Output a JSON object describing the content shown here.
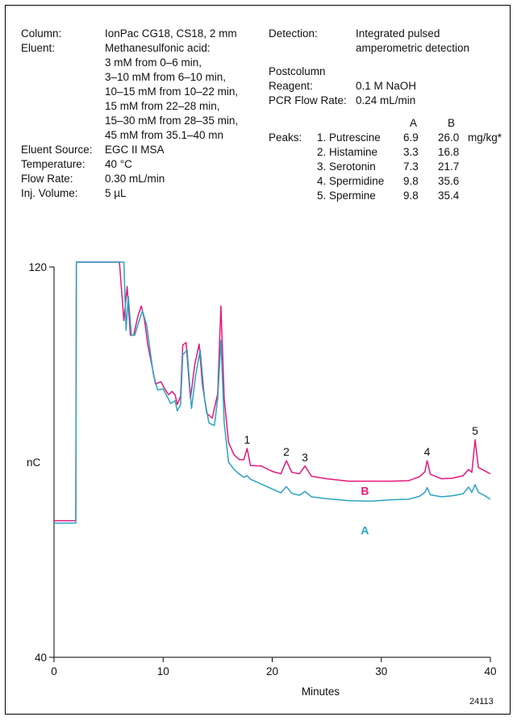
{
  "conditions_left": [
    {
      "label": "Column:",
      "value": [
        "IonPac CG18, CS18, 2 mm"
      ]
    },
    {
      "label": "Eluent:",
      "value": [
        "Methanesulfonic acid:",
        "3 mM from 0–6 min,",
        "3–10 mM from 6–10 min,",
        "10–15 mM from 10–22 min,",
        "15 mM from 22–28 min,",
        "15–30 mM from 28–35 min,",
        "45 mM from 35.1–40 mn"
      ]
    },
    {
      "label": "Eluent Source:",
      "value": [
        "EGC II MSA"
      ]
    },
    {
      "label": "Temperature:",
      "value": [
        "40 °C"
      ]
    },
    {
      "label": "Flow Rate:",
      "value": [
        "0.30 mL/min"
      ]
    },
    {
      "label": "Inj. Volume:",
      "value": [
        "5 µL"
      ]
    }
  ],
  "conditions_right": {
    "detection_label": "Detection:",
    "detection_value": [
      "Integrated pulsed",
      "amperometric detection"
    ],
    "postcolumn_label": "Postcolumn",
    "reagent_label": "Reagent:",
    "reagent_value": "0.1 M NaOH",
    "pcr_label": "PCR Flow Rate:",
    "pcr_value": "0.24 mL/min"
  },
  "peaks_table": {
    "label": "Peaks:",
    "col_a": "A",
    "col_b": "B",
    "unit": "mg/kg*",
    "rows": [
      {
        "name": "1. Putrescine",
        "a": "6.9",
        "b": "26.0"
      },
      {
        "name": "2. Histamine",
        "a": "3.3",
        "b": "16.8"
      },
      {
        "name": "3. Serotonin",
        "a": "7.3",
        "b": "21.7"
      },
      {
        "name": "4. Spermidine",
        "a": "9.8",
        "b": "35.6"
      },
      {
        "name": "5. Spermine",
        "a": "9.8",
        "b": "35.4"
      }
    ]
  },
  "figure_id": "24113",
  "colors": {
    "A": "#2ba3c4",
    "B": "#e4187a"
  },
  "chart_data": {
    "type": "line",
    "xlabel": "Minutes",
    "ylabel": "nC",
    "xlim": [
      0,
      40
    ],
    "ylim": [
      40,
      120
    ],
    "x_ticks": [
      0,
      10,
      20,
      30,
      40
    ],
    "y_ticks": [
      40,
      120
    ],
    "peak_labels": [
      {
        "label": "1",
        "x": 17.7,
        "y": 83.8
      },
      {
        "label": "2",
        "x": 21.3,
        "y": 81.3
      },
      {
        "label": "3",
        "x": 23.0,
        "y": 80.2
      },
      {
        "label": "4",
        "x": 34.2,
        "y": 81.3
      },
      {
        "label": "5",
        "x": 38.6,
        "y": 85.6
      }
    ],
    "series": [
      {
        "name": "B",
        "label_pos": {
          "x": 28.5,
          "y": 73.3
        },
        "points": [
          [
            -5.0,
            68.0
          ],
          [
            2.0,
            68.0
          ],
          [
            2.05,
            121.0
          ],
          [
            6.0,
            121.0
          ],
          [
            6.4,
            109.0
          ],
          [
            6.7,
            116.0
          ],
          [
            7.0,
            106.0
          ],
          [
            7.3,
            106.0
          ],
          [
            7.7,
            110.0
          ],
          [
            8.0,
            112.0
          ],
          [
            8.3,
            109.0
          ],
          [
            8.6,
            104.0
          ],
          [
            9.0,
            99.5
          ],
          [
            9.3,
            96.0
          ],
          [
            9.8,
            96.5
          ],
          [
            10.1,
            95.2
          ],
          [
            10.5,
            93.8
          ],
          [
            10.8,
            94.5
          ],
          [
            11.1,
            93.8
          ],
          [
            11.3,
            91.8
          ],
          [
            11.6,
            93.5
          ],
          [
            11.8,
            104.0
          ],
          [
            12.1,
            104.5
          ],
          [
            12.5,
            93.0
          ],
          [
            12.9,
            100.0
          ],
          [
            13.3,
            104.2
          ],
          [
            13.6,
            96.0
          ],
          [
            14.0,
            90.0
          ],
          [
            14.5,
            89.0
          ],
          [
            15.0,
            94.0
          ],
          [
            15.3,
            112.0
          ],
          [
            15.6,
            93.0
          ],
          [
            16.0,
            84.0
          ],
          [
            16.5,
            81.5
          ],
          [
            17.0,
            80.5
          ],
          [
            17.4,
            80.5
          ],
          [
            17.7,
            82.8
          ],
          [
            18.0,
            79.3
          ],
          [
            19.0,
            79.2
          ],
          [
            20.0,
            78.1
          ],
          [
            20.8,
            77.6
          ],
          [
            21.3,
            80.3
          ],
          [
            21.8,
            77.9
          ],
          [
            22.5,
            77.6
          ],
          [
            23.0,
            79.2
          ],
          [
            23.6,
            77.1
          ],
          [
            25.0,
            76.6
          ],
          [
            27.0,
            76.1
          ],
          [
            29.0,
            76.1
          ],
          [
            31.0,
            76.1
          ],
          [
            32.5,
            76.2
          ],
          [
            33.5,
            77.0
          ],
          [
            34.0,
            78.0
          ],
          [
            34.2,
            80.3
          ],
          [
            34.5,
            77.5
          ],
          [
            35.5,
            76.6
          ],
          [
            36.5,
            76.7
          ],
          [
            37.5,
            77.2
          ],
          [
            38.0,
            78.5
          ],
          [
            38.3,
            77.9
          ],
          [
            38.6,
            84.6
          ],
          [
            38.9,
            78.9
          ],
          [
            40.0,
            77.6
          ]
        ]
      },
      {
        "name": "A",
        "label_pos": {
          "x": 28.5,
          "y": 65.2
        },
        "points": [
          [
            -5.0,
            67.5
          ],
          [
            2.0,
            67.5
          ],
          [
            2.05,
            121.0
          ],
          [
            6.4,
            121.0
          ],
          [
            6.6,
            107.0
          ],
          [
            6.8,
            114.0
          ],
          [
            7.1,
            106.0
          ],
          [
            7.4,
            106.0
          ],
          [
            7.8,
            109.0
          ],
          [
            8.1,
            111.0
          ],
          [
            8.5,
            108.0
          ],
          [
            8.8,
            103.0
          ],
          [
            9.1,
            98.0
          ],
          [
            9.5,
            94.8
          ],
          [
            10.0,
            95.0
          ],
          [
            10.4,
            93.3
          ],
          [
            10.7,
            92.0
          ],
          [
            11.1,
            92.6
          ],
          [
            11.3,
            90.5
          ],
          [
            11.6,
            91.8
          ],
          [
            11.8,
            102.0
          ],
          [
            12.2,
            103.0
          ],
          [
            12.6,
            91.0
          ],
          [
            13.0,
            98.0
          ],
          [
            13.4,
            103.0
          ],
          [
            13.8,
            93.0
          ],
          [
            14.2,
            88.0
          ],
          [
            14.7,
            87.5
          ],
          [
            15.0,
            93.0
          ],
          [
            15.3,
            105.0
          ],
          [
            15.6,
            88.0
          ],
          [
            16.0,
            80.0
          ],
          [
            16.5,
            78.5
          ],
          [
            17.0,
            77.5
          ],
          [
            17.4,
            76.9
          ],
          [
            17.7,
            77.2
          ],
          [
            18.0,
            76.5
          ],
          [
            19.0,
            75.5
          ],
          [
            20.0,
            74.5
          ],
          [
            20.8,
            73.7
          ],
          [
            21.3,
            75.0
          ],
          [
            21.8,
            73.6
          ],
          [
            22.5,
            73.2
          ],
          [
            23.0,
            74.0
          ],
          [
            23.6,
            72.9
          ],
          [
            25.0,
            72.5
          ],
          [
            27.0,
            72.1
          ],
          [
            29.0,
            72.0
          ],
          [
            31.0,
            72.3
          ],
          [
            32.5,
            72.4
          ],
          [
            33.5,
            73.0
          ],
          [
            34.0,
            73.8
          ],
          [
            34.2,
            74.8
          ],
          [
            34.5,
            73.3
          ],
          [
            35.5,
            72.9
          ],
          [
            36.5,
            73.1
          ],
          [
            37.5,
            73.5
          ],
          [
            38.0,
            74.9
          ],
          [
            38.3,
            73.8
          ],
          [
            38.6,
            75.4
          ],
          [
            38.9,
            73.8
          ],
          [
            39.5,
            73.1
          ],
          [
            40.0,
            72.4
          ]
        ]
      }
    ]
  }
}
